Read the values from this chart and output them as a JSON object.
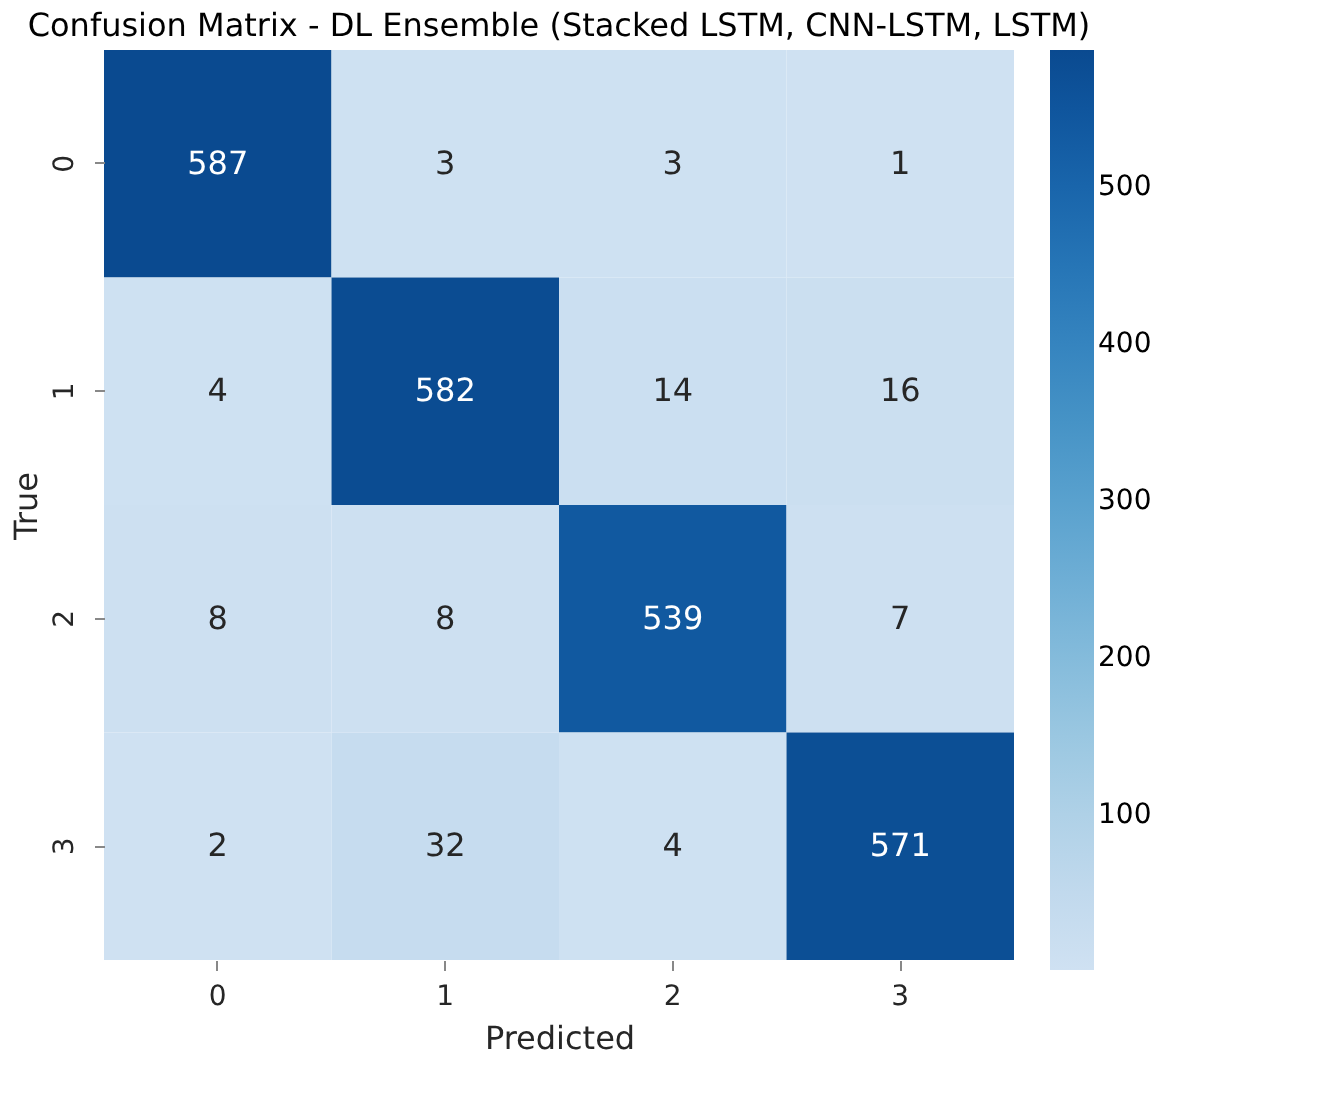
{
  "chart_data": {
    "type": "heatmap",
    "title": "Confusion Matrix - DL Ensemble (Stacked LSTM, CNN-LSTM, LSTM)",
    "xlabel": "Predicted",
    "ylabel": "True",
    "categories": [
      "0",
      "1",
      "2",
      "3"
    ],
    "y_categories": [
      "0",
      "1",
      "2",
      "3"
    ],
    "cells": [
      [
        587,
        3,
        3,
        1
      ],
      [
        4,
        582,
        14,
        16
      ],
      [
        8,
        8,
        539,
        7
      ],
      [
        2,
        32,
        4,
        571
      ]
    ],
    "clim": [
      1,
      587
    ],
    "cticks": [
      100,
      200,
      300,
      400,
      500
    ],
    "data_labels": true
  }
}
